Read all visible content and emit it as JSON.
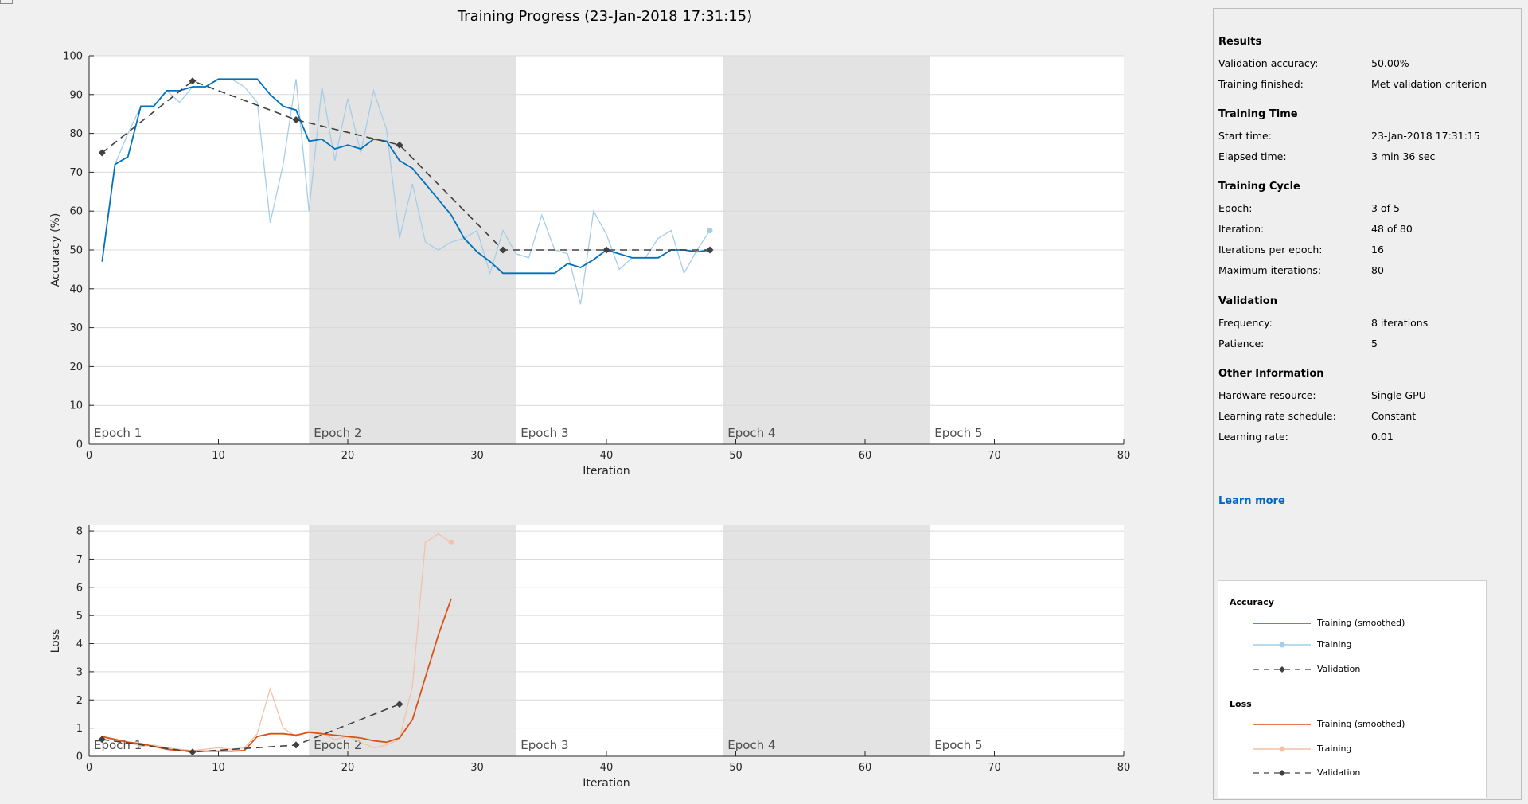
{
  "page": {
    "title": "Training Progress (23-Jan-2018 17:31:15)"
  },
  "colors": {
    "accuracy_smoothed": "#0072bd",
    "accuracy_raw": "#a6cde8",
    "loss_smoothed": "#d95319",
    "loss_raw": "#f2c1a8",
    "validation": "#404040",
    "epoch_shade": "#e3e3e3",
    "link": "#0066cc"
  },
  "side_panel": {
    "sections": [
      {
        "title": "Results",
        "rows": [
          {
            "key": "Validation accuracy:",
            "value": "50.00%"
          },
          {
            "key": "Training finished:",
            "value": "Met validation criterion"
          }
        ]
      },
      {
        "title": "Training Time",
        "rows": [
          {
            "key": "Start time:",
            "value": "23-Jan-2018 17:31:15"
          },
          {
            "key": "Elapsed time:",
            "value": "3 min 36 sec"
          }
        ]
      },
      {
        "title": "Training Cycle",
        "rows": [
          {
            "key": "Epoch:",
            "value": "3 of 5"
          },
          {
            "key": "Iteration:",
            "value": "48 of 80"
          },
          {
            "key": "Iterations per epoch:",
            "value": "16"
          },
          {
            "key": "Maximum iterations:",
            "value": "80"
          }
        ]
      },
      {
        "title": "Validation",
        "rows": [
          {
            "key": "Frequency:",
            "value": "8 iterations"
          },
          {
            "key": "Patience:",
            "value": "5"
          }
        ]
      },
      {
        "title": "Other Information",
        "rows": [
          {
            "key": "Hardware resource:",
            "value": "Single GPU"
          },
          {
            "key": "Learning rate schedule:",
            "value": "Constant"
          },
          {
            "key": "Learning rate:",
            "value": "0.01"
          }
        ]
      }
    ],
    "learn_more": "Learn more",
    "legend": {
      "accuracy_title": "Accuracy",
      "loss_title": "Loss",
      "accuracy_items": [
        "Training (smoothed)",
        "Training",
        "Validation"
      ],
      "loss_items": [
        "Training (smoothed)",
        "Training",
        "Validation"
      ]
    }
  },
  "chart_data": [
    {
      "type": "line",
      "xlabel": "Iteration",
      "ylabel": "Accuracy (%)",
      "xlim": [
        0,
        80
      ],
      "ylim": [
        0,
        100
      ],
      "xticks": [
        0,
        10,
        20,
        30,
        40,
        50,
        60,
        70,
        80
      ],
      "yticks": [
        0,
        10,
        20,
        30,
        40,
        50,
        60,
        70,
        80,
        90,
        100
      ],
      "grid": true,
      "epoch_bands": [
        {
          "label": "Epoch 1",
          "start": 0,
          "end": 17,
          "shaded": false
        },
        {
          "label": "Epoch 2",
          "start": 17,
          "end": 33,
          "shaded": true
        },
        {
          "label": "Epoch 3",
          "start": 33,
          "end": 49,
          "shaded": false
        },
        {
          "label": "Epoch 4",
          "start": 49,
          "end": 65,
          "shaded": true
        },
        {
          "label": "Epoch 5",
          "start": 65,
          "end": 80,
          "shaded": false
        }
      ],
      "series": [
        {
          "name": "Training",
          "style": "raw",
          "color_key": "accuracy_raw",
          "x": [
            1,
            2,
            3,
            4,
            5,
            6,
            7,
            8,
            9,
            10,
            11,
            12,
            13,
            14,
            15,
            16,
            17,
            18,
            19,
            20,
            21,
            22,
            23,
            24,
            25,
            26,
            27,
            28,
            29,
            30,
            31,
            32,
            33,
            34,
            35,
            36,
            37,
            38,
            39,
            40,
            41,
            42,
            43,
            44,
            45,
            46,
            47,
            48
          ],
          "y": [
            47,
            72,
            80,
            87,
            87,
            91,
            88,
            92,
            92,
            94,
            94,
            92,
            88,
            57,
            72,
            94,
            60,
            92,
            73,
            89,
            75,
            91,
            81,
            53,
            67,
            52,
            50,
            52,
            53,
            55,
            44,
            55,
            49,
            48,
            59,
            50,
            49,
            36,
            60,
            54,
            45,
            48,
            48,
            53,
            55,
            44,
            50,
            55
          ]
        },
        {
          "name": "Training (smoothed)",
          "style": "smoothed",
          "color_key": "accuracy_smoothed",
          "x": [
            1,
            2,
            3,
            4,
            5,
            6,
            7,
            8,
            9,
            10,
            11,
            12,
            13,
            14,
            15,
            16,
            17,
            18,
            19,
            20,
            21,
            22,
            23,
            24,
            25,
            26,
            27,
            28,
            29,
            30,
            31,
            32,
            33,
            34,
            35,
            36,
            37,
            38,
            39,
            40,
            41,
            42,
            43,
            44,
            45,
            46,
            47,
            48
          ],
          "y": [
            47,
            72,
            74,
            87,
            87,
            91,
            91,
            92,
            92,
            94,
            94,
            94,
            94,
            90,
            87,
            86,
            78,
            78.5,
            76,
            77,
            76,
            78.5,
            78,
            73,
            71,
            67,
            63,
            59,
            53,
            49.5,
            47,
            44,
            44,
            44,
            44,
            44,
            46.5,
            45.5,
            47.5,
            50,
            49,
            48,
            48,
            48,
            50,
            50,
            49.5,
            50
          ]
        },
        {
          "name": "Validation",
          "style": "validation",
          "color_key": "validation",
          "x": [
            1,
            8,
            16,
            24,
            32,
            40,
            48
          ],
          "y": [
            75,
            93.5,
            83.5,
            77,
            50,
            50,
            50
          ]
        }
      ]
    },
    {
      "type": "line",
      "xlabel": "Iteration",
      "ylabel": "Loss",
      "xlim": [
        0,
        80
      ],
      "ylim": [
        0,
        8.2
      ],
      "xticks": [
        0,
        10,
        20,
        30,
        40,
        50,
        60,
        70,
        80
      ],
      "yticks": [
        0,
        1,
        2,
        3,
        4,
        5,
        6,
        7,
        8
      ],
      "grid": true,
      "epoch_bands": [
        {
          "label": "Epoch 1",
          "start": 0,
          "end": 17,
          "shaded": false
        },
        {
          "label": "Epoch 2",
          "start": 17,
          "end": 33,
          "shaded": true
        },
        {
          "label": "Epoch 3",
          "start": 33,
          "end": 49,
          "shaded": false
        },
        {
          "label": "Epoch 4",
          "start": 49,
          "end": 65,
          "shaded": true
        },
        {
          "label": "Epoch 5",
          "start": 65,
          "end": 80,
          "shaded": false
        }
      ],
      "series": [
        {
          "name": "Training",
          "style": "raw",
          "color_key": "loss_raw",
          "x": [
            1,
            2,
            3,
            4,
            5,
            6,
            7,
            8,
            9,
            10,
            11,
            12,
            13,
            14,
            15,
            16,
            17,
            18,
            19,
            20,
            21,
            22,
            23,
            24,
            25,
            26,
            27,
            28
          ],
          "y": [
            0.7,
            0.55,
            0.5,
            0.35,
            0.4,
            0.3,
            0.25,
            0.2,
            0.25,
            0.3,
            0.25,
            0.3,
            0.8,
            2.4,
            1.0,
            0.7,
            0.9,
            0.8,
            0.6,
            0.7,
            0.5,
            0.3,
            0.4,
            0.6,
            2.5,
            7.6,
            7.9,
            7.6
          ]
        },
        {
          "name": "Training (smoothed)",
          "style": "smoothed",
          "color_key": "loss_smoothed",
          "x": [
            1,
            2,
            3,
            4,
            5,
            6,
            7,
            8,
            9,
            10,
            11,
            12,
            13,
            14,
            15,
            16,
            17,
            18,
            19,
            20,
            21,
            22,
            23,
            24,
            25,
            26,
            27,
            28
          ],
          "y": [
            0.7,
            0.6,
            0.5,
            0.45,
            0.35,
            0.25,
            0.2,
            0.18,
            0.18,
            0.18,
            0.18,
            0.2,
            0.7,
            0.8,
            0.8,
            0.75,
            0.85,
            0.8,
            0.75,
            0.7,
            0.65,
            0.55,
            0.5,
            0.65,
            1.3,
            2.8,
            4.3,
            5.6
          ]
        },
        {
          "name": "Validation",
          "style": "validation",
          "color_key": "validation",
          "x": [
            1,
            8,
            16,
            24
          ],
          "y": [
            0.6,
            0.15,
            0.4,
            1.85
          ]
        }
      ]
    }
  ]
}
